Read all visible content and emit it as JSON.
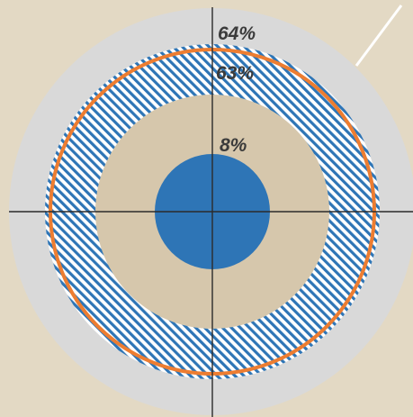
{
  "chart_data": {
    "type": "radial",
    "title": "",
    "max_value": 64,
    "rings": [
      {
        "kind": "outer-disc",
        "value": 64,
        "label": "64%",
        "color": "#d9d9d9"
      },
      {
        "kind": "hatched-band",
        "value": 63,
        "label": "63%",
        "color": "#2e75b6",
        "stroke": "#ed7d31"
      },
      {
        "kind": "inner-disc",
        "value": 8,
        "label": "8%",
        "color": "#d6c7ac"
      },
      {
        "kind": "core",
        "color": "#2e75b6"
      }
    ],
    "axes": {
      "crosshair": true,
      "color": "#2b2b2b"
    }
  },
  "colors": {
    "background": "#e3d9c4",
    "line": "#ffffff"
  }
}
